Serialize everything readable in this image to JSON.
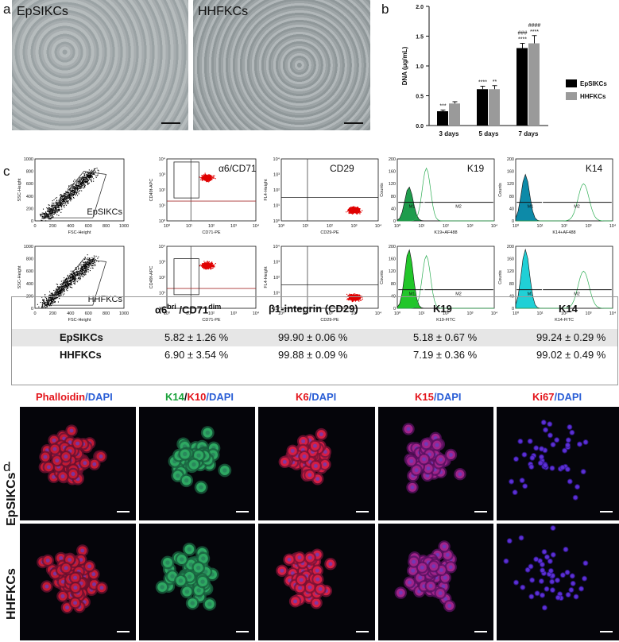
{
  "panels": {
    "a": "a",
    "b": "b",
    "c": "c",
    "d": "d"
  },
  "panel_a": {
    "left_label": "EpSIKCs",
    "right_label": "HHFKCs"
  },
  "colors": {
    "epsikcs_bar": "#000000",
    "hhfkcs_bar": "#9a9a9a",
    "flow_red": "#e00000",
    "k19_fill": "#1e9c4c",
    "k14_fill": "#0d8aa8"
  },
  "chart_data": {
    "type": "bar",
    "ylabel": "DNA (μg/mL)",
    "ylim": [
      0,
      2.0
    ],
    "yticks": [
      "0.0",
      "0.5",
      "1.0",
      "1.5",
      "2.0"
    ],
    "categories": [
      "3 days",
      "5 days",
      "7 days"
    ],
    "series": [
      {
        "name": "EpSIKCs",
        "values": [
          0.24,
          0.61,
          1.3
        ],
        "errors": [
          0.02,
          0.05,
          0.08
        ]
      },
      {
        "name": "HHFKCs",
        "values": [
          0.37,
          0.61,
          1.38
        ],
        "errors": [
          0.03,
          0.06,
          0.13
        ]
      }
    ],
    "annotations": [
      "***",
      "****",
      "**",
      "###\n****",
      "####\n****"
    ],
    "legend": "right"
  },
  "flow": {
    "dot_titles": [
      "α6/CD71",
      "CD29"
    ],
    "hist_titles": [
      "K19",
      "K14"
    ],
    "row_labels": [
      "EpSIKCs",
      "HHFKCs"
    ],
    "fsc_xlabel": "FSC-Height",
    "fsc_ylabel": "SSC-Height",
    "cd71_xlabel": "CD71-PE",
    "cd71_ylabel": "CD49f-APC",
    "cd29_xlabel": "CD29-PE",
    "cd29_ylabel": "FL4-Height",
    "k19_xlabel_top": "K19+AF488",
    "k14_xlabel_top": "K14+AF488",
    "k19_xlabel_bottom": "K19-FITC",
    "k14_xlabel_bottom": "K14-FITC",
    "counts": "Counts",
    "m1": "M1",
    "m2": "M2",
    "lin_ticks": [
      "0",
      "200",
      "400",
      "600",
      "800",
      "1000"
    ],
    "log_ticks": [
      "10⁰",
      "10¹",
      "10²",
      "10³",
      "10⁴"
    ],
    "count_ticks": [
      "0",
      "40",
      "80",
      "120",
      "160",
      "200"
    ]
  },
  "table": {
    "headers": [
      "",
      "α6bri /CD71dim",
      "β1-integrin (CD29)",
      "K19",
      "K14"
    ],
    "rows": [
      [
        "EpSIKCs",
        "5.82 ± 1.26 %",
        "99.90 ± 0.06 %",
        "5.18 ± 0.67 %",
        "99.24 ± 0.29 %"
      ],
      [
        "HHFKCs",
        "6.90 ± 3.54 %",
        "99.88 ± 0.09 %",
        "7.19 ± 0.36 %",
        "99.02 ± 0.49 %"
      ]
    ]
  },
  "panel_d": {
    "stains": [
      {
        "a": "Phalloidin",
        "b": "/DAPI"
      },
      {
        "a": "K14",
        "b": "/",
        "c": "K10",
        "d": "/DAPI"
      },
      {
        "a": "K6",
        "b": "/DAPI"
      },
      {
        "a": "K15",
        "b": "/DAPI"
      },
      {
        "a": "Ki67",
        "b": "/DAPI"
      }
    ],
    "row_labels": [
      "EpSIKCs",
      "HHFKCs"
    ]
  }
}
